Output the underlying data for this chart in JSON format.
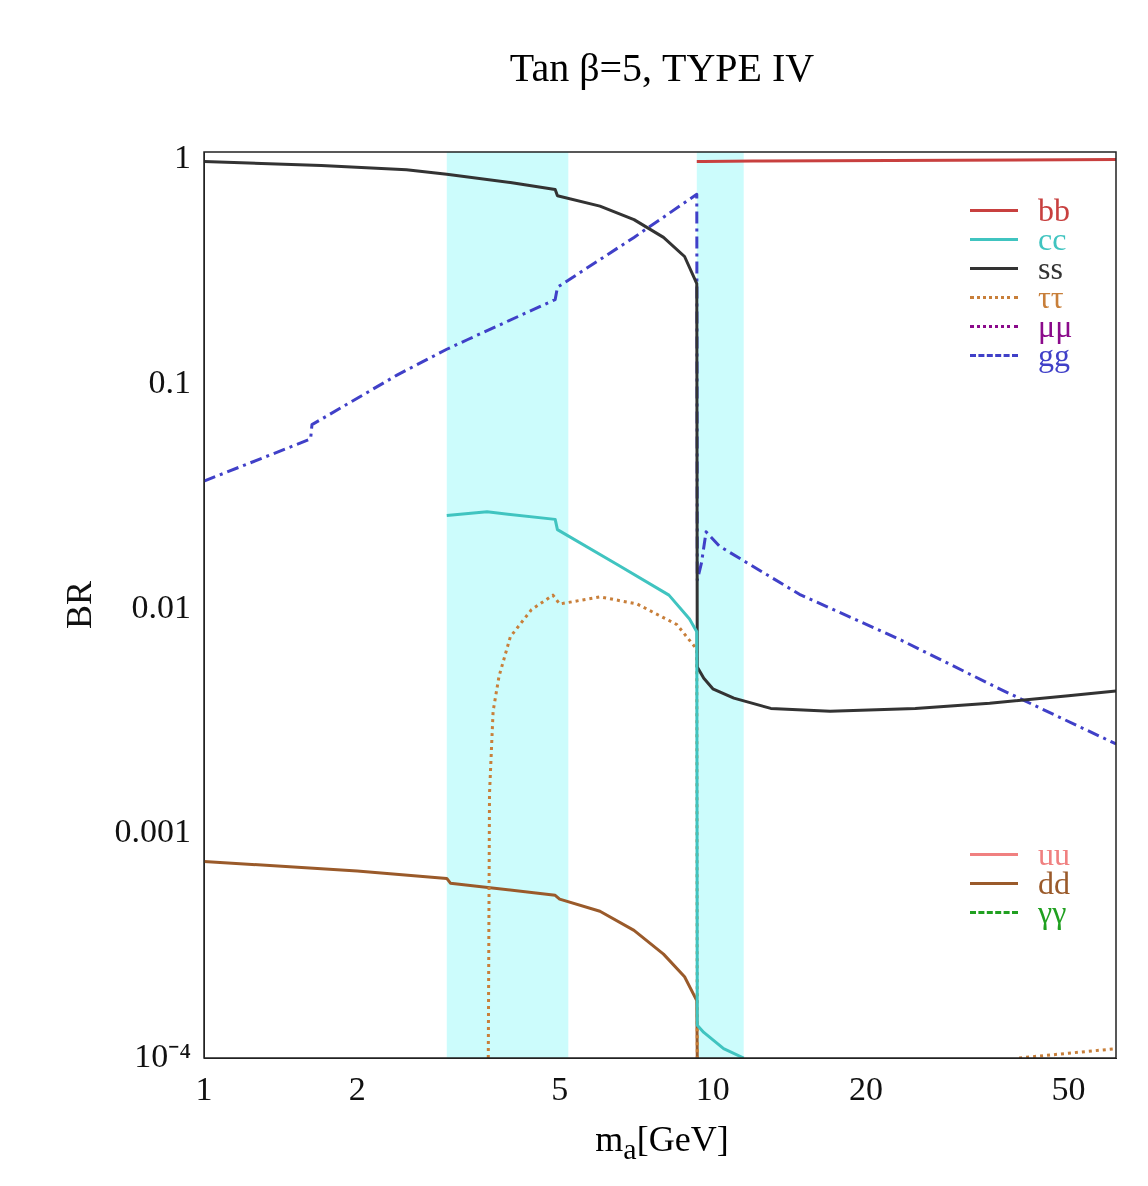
{
  "chart_data": {
    "type": "line",
    "title": "Tan β=5, TYPE IV",
    "xlabel": "m$_{a}$[GeV]",
    "ylabel": "BR",
    "log": "xy",
    "grid": false,
    "legend": "right",
    "marker": "none",
    "xlim": [
      1,
      62
    ],
    "xticks": [
      1,
      2,
      5,
      10,
      20,
      50
    ],
    "ylim": [
      0.0001,
      1.08
    ],
    "yticks": [
      1,
      0.1,
      0.01,
      0.001,
      {
        "value": 0.0001,
        "label": "10⁻⁴"
      }
    ],
    "bands": [
      {
        "axis": "x",
        "from": 3,
        "to": 5.2,
        "color": "#ccfcfc"
      },
      {
        "axis": "x",
        "from": 9.3,
        "to": 11.5,
        "color": "#ccfcfc"
      }
    ],
    "series": [
      {
        "name": "bb",
        "color": "#c8403f",
        "line_style": "solid",
        "x": [
          9.3,
          9.6,
          12,
          62
        ],
        "values": [
          0.98,
          0.98,
          0.985,
          1.0
        ]
      },
      {
        "name": "cc",
        "color": "#40c4c0",
        "line_style": "solid",
        "x": [
          3,
          3.6,
          4.9,
          4.95,
          6.5,
          8.2,
          9.0,
          9.3,
          9.32,
          9.6,
          10.5,
          11.5
        ],
        "values": [
          0.026,
          0.027,
          0.025,
          0.0225,
          0.0157,
          0.0115,
          0.009,
          0.0079,
          0.00014,
          0.00013,
          0.00011,
          0.0001
        ]
      },
      {
        "name": "ss",
        "color": "#333333",
        "line_style": "solid",
        "x": [
          1,
          1.7,
          2.5,
          3,
          4,
          4.9,
          4.95,
          6,
          7,
          8,
          8.8,
          9.3,
          9.32,
          9.6,
          10,
          11,
          13,
          17,
          25,
          35,
          50,
          62
        ],
        "values": [
          0.98,
          0.94,
          0.9,
          0.86,
          0.79,
          0.735,
          0.69,
          0.62,
          0.54,
          0.45,
          0.37,
          0.28,
          0.0055,
          0.0049,
          0.0044,
          0.004,
          0.0036,
          0.0035,
          0.0036,
          0.0038,
          0.0041,
          0.0043
        ]
      },
      {
        "name": "ττ",
        "color": "#c87f3a",
        "line_style": "dotted",
        "x": [
          3.62,
          3.64,
          3.7,
          3.8,
          4.0,
          4.4,
          4.85,
          5.0,
          6.0,
          7.1,
          8.5,
          9.3,
          9.32,
          20,
          40,
          50,
          62
        ],
        "values": [
          0.0001,
          0.0015,
          0.0035,
          0.005,
          0.0075,
          0.0099,
          0.0115,
          0.0105,
          0.0113,
          0.0105,
          0.0085,
          0.0066,
          0.0001,
          null,
          0.0001,
          0.000105,
          0.00011
        ]
      },
      {
        "name": "μμ",
        "color": "#8b0a8b",
        "line_style": "dotted"
      },
      {
        "name": "gg",
        "color": "#4040c8",
        "line_style": "dashdot",
        "x": [
          1,
          1.62,
          1.63,
          2.4,
          3,
          3.3,
          4.9,
          4.95,
          7,
          9.3,
          9.32,
          9.5,
          9.7,
          10.3,
          14.8,
          23.3,
          36.6,
          62
        ],
        "values": [
          0.037,
          0.057,
          0.066,
          0.11,
          0.143,
          0.158,
          0.238,
          0.27,
          0.45,
          0.7,
          0.0134,
          0.016,
          0.022,
          0.019,
          0.0116,
          0.0073,
          0.0044,
          0.0025
        ]
      },
      {
        "name": "uu",
        "color": "#f08080",
        "line_style": "solid"
      },
      {
        "name": "dd",
        "color": "#9a5a2a",
        "line_style": "solid",
        "x": [
          1,
          2,
          3,
          3.05,
          4.9,
          5,
          6,
          7,
          8,
          8.8,
          9.3,
          9.32
        ],
        "values": [
          0.00075,
          0.00068,
          0.00063,
          0.0006,
          0.00053,
          0.00051,
          0.00045,
          0.00037,
          0.00029,
          0.00023,
          0.00018,
          0.0001
        ]
      },
      {
        "name": "γγ",
        "color": "#20a020",
        "line_style": "dashed"
      }
    ]
  }
}
